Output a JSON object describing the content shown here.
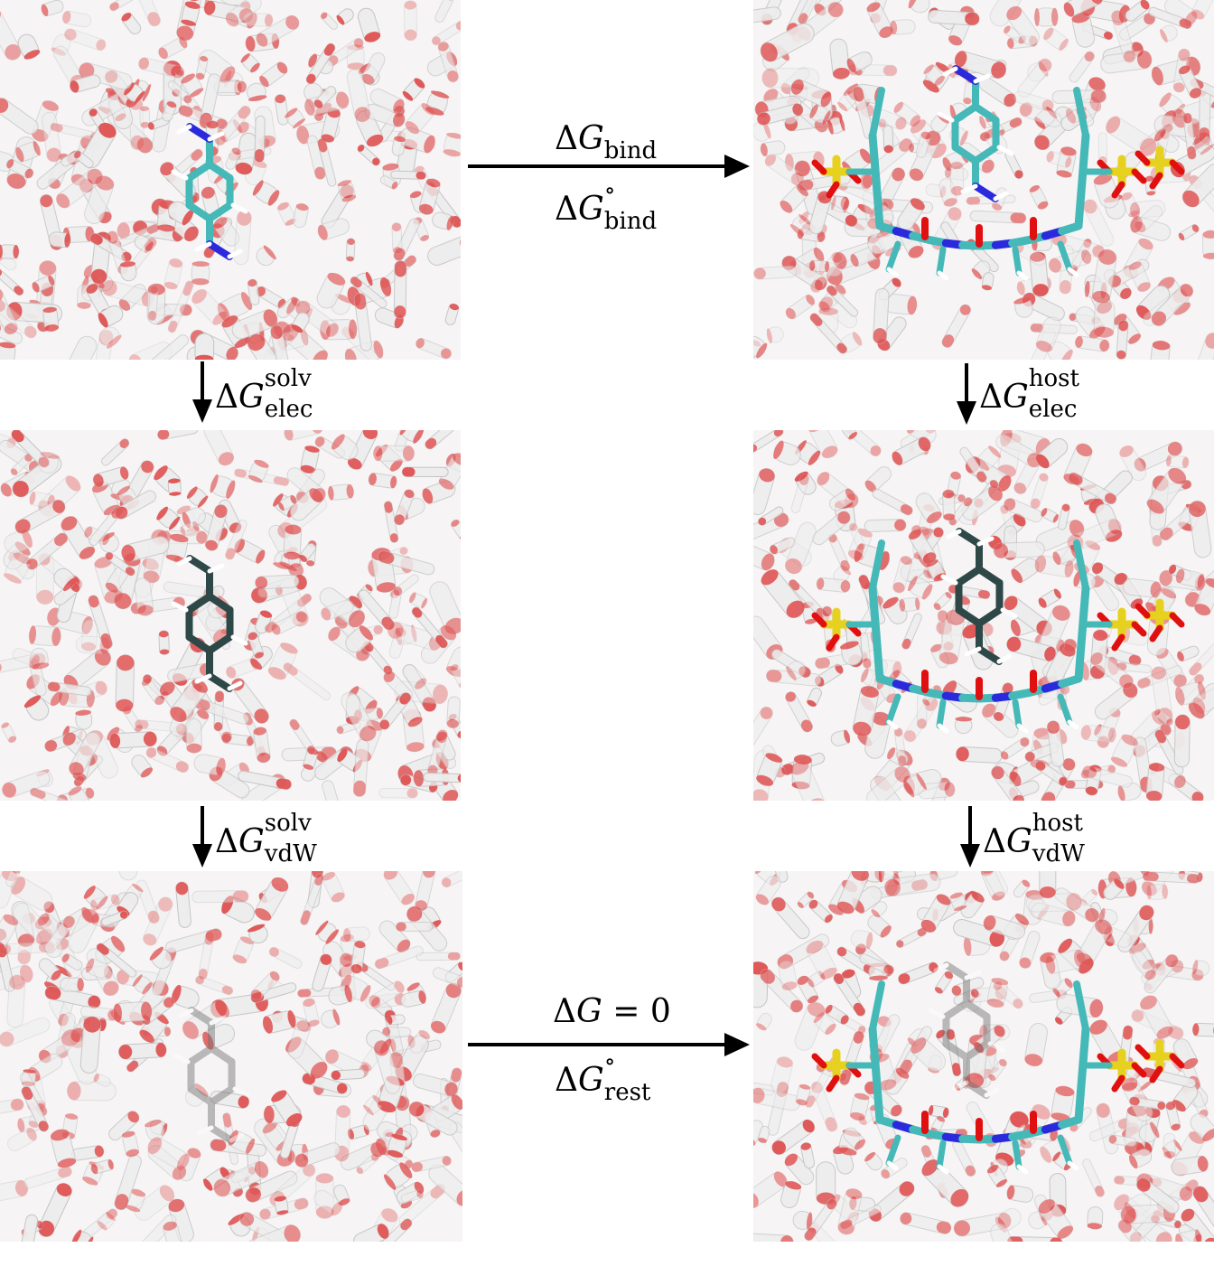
{
  "arrows": {
    "top": {
      "upper": "bind",
      "lower": "bind",
      "circle": "∘"
    },
    "bottom": {
      "upper": "= 0",
      "lower": "rest",
      "circle": "∘"
    },
    "left1": {
      "sup": "solv",
      "sub": "elec"
    },
    "left2": {
      "sup": "solv",
      "sub": "vdW"
    },
    "right1": {
      "sup": "host",
      "sub": "elec"
    },
    "right2": {
      "sup": "host",
      "sub": "vdW"
    }
  },
  "symbol": {
    "delta": "Δ",
    "g": "G"
  },
  "panels": [
    {
      "id": "free-ligand",
      "guest": "charged",
      "host": false
    },
    {
      "id": "ligand-neutral",
      "guest": "neutral",
      "host": false
    },
    {
      "id": "ligand-decoupled",
      "guest": "ghost",
      "host": false
    },
    {
      "id": "complex",
      "guest": "charged",
      "host": true
    },
    {
      "id": "complex-neutral",
      "guest": "neutral",
      "host": true
    },
    {
      "id": "complex-decoupled",
      "guest": "ghost",
      "host": true
    }
  ],
  "colors": {
    "water_o": "#e05858",
    "water_h": "#ffffff",
    "carbon": "#45b8b8",
    "nitrogen": "#2a2adc",
    "oxygen": "#e01010",
    "sulfur": "#e6d21e",
    "guest_neutral": "#2e4848",
    "guest_ghost": "#707070"
  }
}
